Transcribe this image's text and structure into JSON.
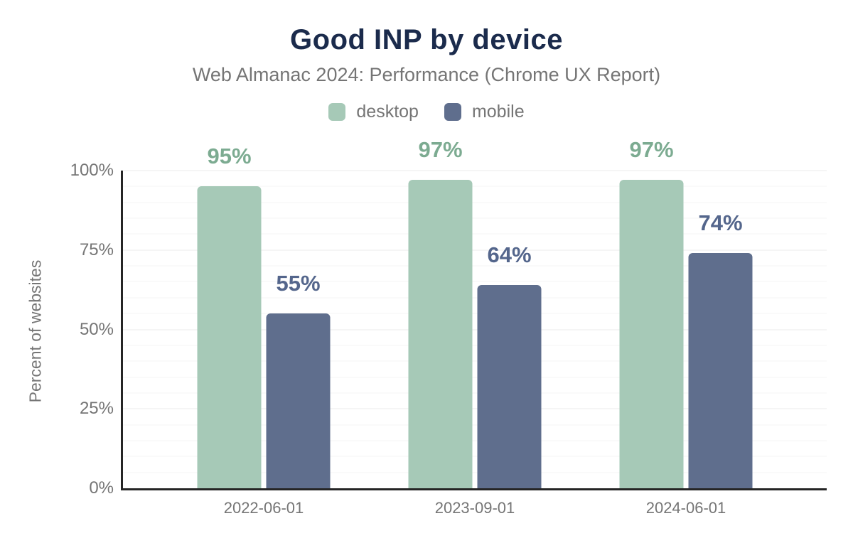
{
  "header": {
    "title": "Good INP by device",
    "subtitle": "Web Almanac 2024: Performance (Chrome UX Report)"
  },
  "chart_data": {
    "type": "bar",
    "title": "Good INP by device",
    "subtitle": "Web Almanac 2024: Performance (Chrome UX Report)",
    "categories": [
      "2022-06-01",
      "2023-09-01",
      "2024-06-01"
    ],
    "series": [
      {
        "name": "desktop",
        "values": [
          95,
          97,
          97
        ],
        "bar_color": "#a6c9b7",
        "label_color": "#7cab91"
      },
      {
        "name": "mobile",
        "values": [
          55,
          64,
          74
        ],
        "bar_color": "#5f6e8d",
        "label_color": "#54668c"
      }
    ],
    "value_suffix": "%",
    "xlabel": "",
    "ylabel": "Percent of websites",
    "ylim": [
      0,
      100
    ],
    "yticks": [
      0,
      25,
      50,
      75,
      100
    ],
    "ytick_labels": [
      "0%",
      "25%",
      "50%",
      "75%",
      "100%"
    ],
    "grid": true,
    "grid_interval_percent": 5,
    "legend_position": "top",
    "data_labels": "above-bars",
    "group_centers_percent": [
      20,
      50,
      80
    ]
  },
  "colors": {
    "background": "#ffffff",
    "title": "#1b2b4c",
    "subtitle": "#757575",
    "axis": "#252525",
    "tick_label": "#757575",
    "gridline_minor": "#f5f5f5",
    "gridline_major": "#ebebeb"
  }
}
